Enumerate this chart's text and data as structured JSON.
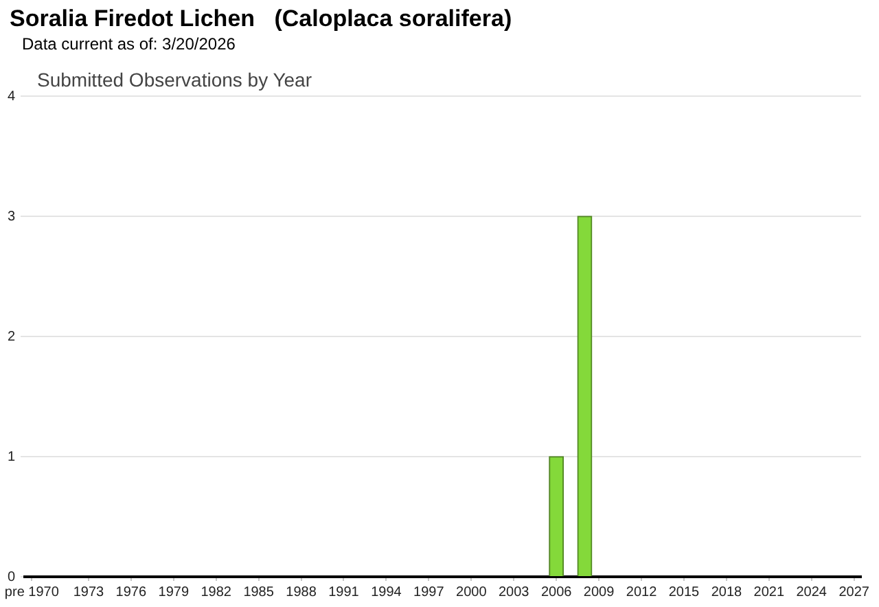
{
  "chart_data": {
    "type": "bar",
    "title": "Soralia Firedot Lichen   (Caloplaca soralifera)",
    "subtitle": "Submitted Observations by Year",
    "annotations": [
      "Data current as of: 3/20/2026"
    ],
    "categories": [
      "pre 1970",
      null,
      null,
      null,
      "1973",
      null,
      null,
      "1976",
      null,
      null,
      "1979",
      null,
      null,
      "1982",
      null,
      null,
      "1985",
      null,
      null,
      "1988",
      null,
      null,
      "1991",
      null,
      null,
      "1994",
      null,
      null,
      "1997",
      null,
      null,
      "2000",
      null,
      null,
      "2003",
      null,
      null,
      "2006",
      null,
      null,
      "2009",
      null,
      null,
      "2012",
      null,
      null,
      "2015",
      null,
      null,
      "2018",
      null,
      null,
      "2021",
      null,
      null,
      "2024",
      null,
      null,
      "2027"
    ],
    "values": [
      0,
      0,
      0,
      0,
      0,
      0,
      0,
      0,
      0,
      0,
      0,
      0,
      0,
      0,
      0,
      0,
      0,
      0,
      0,
      0,
      0,
      0,
      0,
      0,
      0,
      0,
      0,
      0,
      0,
      0,
      0,
      0,
      0,
      0,
      0,
      0,
      0,
      1,
      0,
      3,
      0,
      0,
      0,
      0,
      0,
      0,
      0,
      0,
      0,
      0,
      0,
      0,
      0,
      0,
      0,
      0,
      0,
      0,
      0
    ],
    "color": "#84d93a",
    "ylim": [
      0,
      4
    ],
    "yticks": [
      0,
      1,
      2,
      3,
      4
    ],
    "grid": "y"
  }
}
